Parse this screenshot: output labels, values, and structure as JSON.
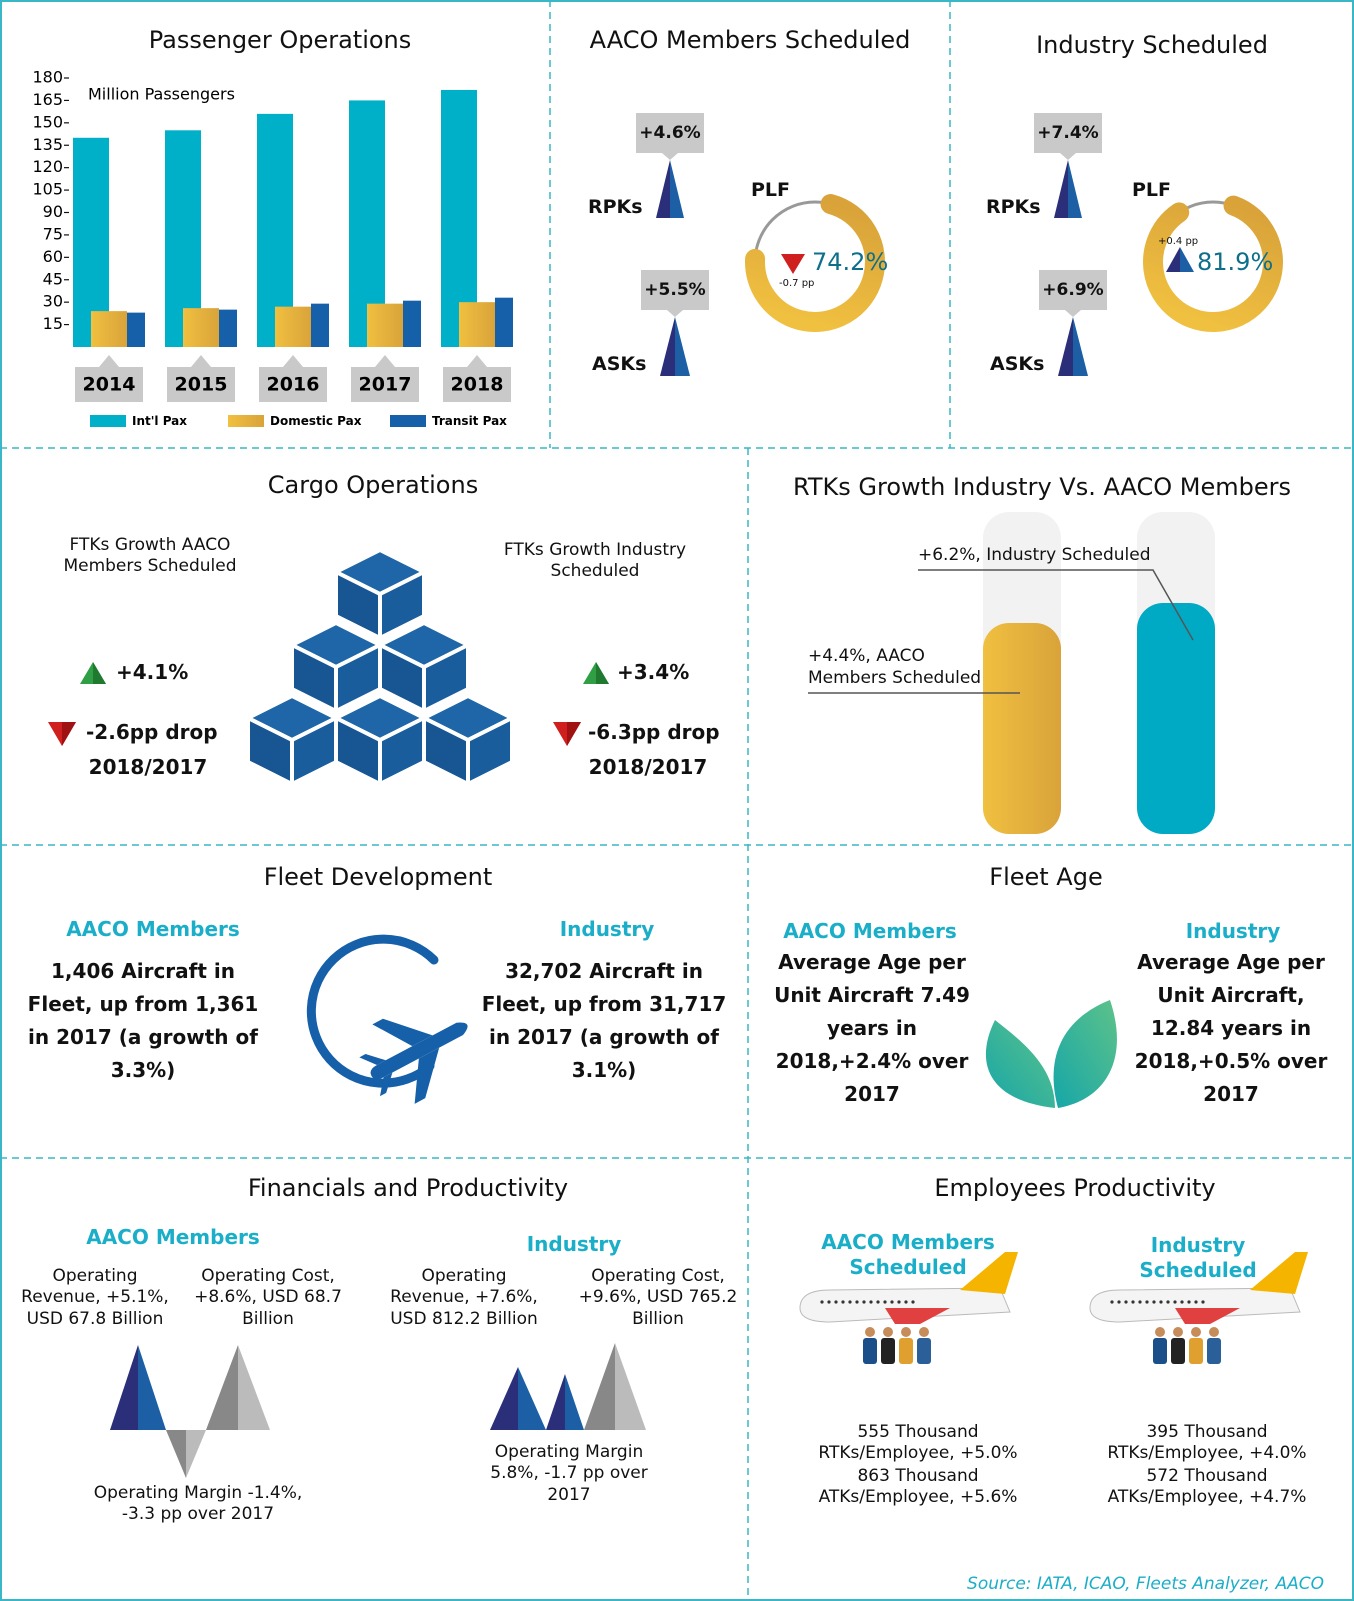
{
  "chart_data": {
    "type": "bar",
    "title": "Passenger Operations",
    "y_label": "Million Passengers",
    "categories": [
      "2014",
      "2015",
      "2016",
      "2017",
      "2018"
    ],
    "series": [
      {
        "name": "Int'l Pax",
        "color": "#00b0c8",
        "values": [
          140,
          145,
          156,
          165,
          172
        ]
      },
      {
        "name": "Domestic Pax",
        "color": "#e9b43a",
        "values": [
          24,
          26,
          27,
          29,
          30
        ]
      },
      {
        "name": "Transit Pax",
        "color": "#1560a8",
        "values": [
          23,
          25,
          29,
          31,
          33
        ]
      }
    ],
    "ylim": [
      0,
      180
    ],
    "yticks": [
      15,
      30,
      45,
      60,
      75,
      90,
      105,
      120,
      135,
      150,
      165,
      180
    ]
  },
  "aaco_scheduled": {
    "title": "AACO Members Scheduled",
    "rpks_label": "RPKs",
    "rpks_growth": "+4.6%",
    "asks_label": "ASKs",
    "asks_growth": "+5.5%",
    "plf_label": "PLF",
    "plf_value": "74.2%",
    "plf_change": "-0.7 pp"
  },
  "industry_scheduled": {
    "title": "Industry Scheduled",
    "rpks_label": "RPKs",
    "rpks_growth": "+7.4%",
    "asks_label": "ASKs",
    "asks_growth": "+6.9%",
    "plf_label": "PLF",
    "plf_value": "81.9%",
    "plf_change": "+0.4 pp"
  },
  "cargo": {
    "title": "Cargo Operations",
    "aaco": {
      "heading": "FTKs Growth AACO Members Scheduled",
      "growth": "+4.1%",
      "drop": "-2.6pp drop",
      "period": "2018/2017"
    },
    "industry": {
      "heading": "FTKs Growth Industry Scheduled",
      "growth": "+3.4%",
      "drop": "-6.3pp drop",
      "period": "2018/2017"
    }
  },
  "rtks": {
    "title": "RTKs Growth Industry Vs. AACO Members",
    "industry": "+6.2%, Industry Scheduled",
    "aaco": "+4.4%, AACO Members Scheduled"
  },
  "fleet": {
    "title": "Fleet Development",
    "aaco": {
      "heading": "AACO Members",
      "text": "1,406 Aircraft in Fleet, up from 1,361 in 2017 (a growth of 3.3%)"
    },
    "industry": {
      "heading": "Industry",
      "text": "32,702 Aircraft in Fleet, up from 31,717 in 2017 (a growth of 3.1%)"
    }
  },
  "fleet_age": {
    "title": "Fleet Age",
    "aaco": {
      "heading": "AACO Members",
      "text": "Average Age per Unit Aircraft 7.49 years in 2018,+2.4% over 2017"
    },
    "industry": {
      "heading": "Industry",
      "text": "Average Age per Unit Aircraft, 12.84 years in 2018,+0.5% over 2017"
    }
  },
  "financials": {
    "title": "Financials and Productivity",
    "aaco": {
      "heading": "AACO Members",
      "revenue": "Operating Revenue, +5.1%, USD 67.8 Billion",
      "cost": "Operating Cost, +8.6%, USD 68.7 Billion",
      "margin": "Operating Margin -1.4%, -3.3 pp over 2017"
    },
    "industry": {
      "heading": "Industry",
      "revenue": "Operating Revenue, +7.6%, USD 812.2 Billion",
      "cost": "Operating Cost, +9.6%, USD 765.2 Billion",
      "margin": "Operating Margin 5.8%, -1.7 pp over 2017"
    }
  },
  "employees": {
    "title": "Employees Productivity",
    "aaco": {
      "heading": "AACO Members Scheduled",
      "rtks": "555 Thousand RTKs/Employee, +5.0%",
      "atks": "863 Thousand ATKs/Employee, +5.6%"
    },
    "industry": {
      "heading": "Industry Scheduled",
      "rtks": "395 Thousand RTKs/Employee, +4.0%",
      "atks": "572 Thousand ATKs/Employee, +4.7%"
    }
  },
  "source": "Source: IATA, ICAO, Fleets Analyzer, AACO"
}
